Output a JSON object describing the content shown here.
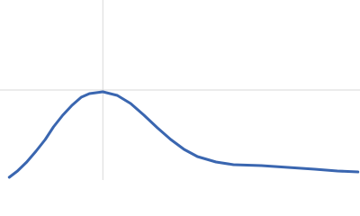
{
  "chart_data": {
    "type": "line",
    "x": [
      0.09,
      0.17,
      0.26,
      0.35,
      0.44,
      0.52,
      0.61,
      0.7,
      0.79,
      0.87,
      1.0,
      1.14,
      1.27,
      1.4,
      1.53,
      1.66,
      1.79,
      1.92,
      2.1,
      2.27,
      2.54,
      2.8,
      3.06,
      3.28,
      3.48
    ],
    "series": [
      {
        "color": "#3a66b0",
        "values": [
          0.03,
          0.1,
          0.2,
          0.32,
          0.45,
          0.59,
          0.72,
          0.83,
          0.92,
          0.96,
          0.98,
          0.94,
          0.85,
          0.72,
          0.58,
          0.45,
          0.34,
          0.26,
          0.2,
          0.17,
          0.16,
          0.14,
          0.12,
          0.1,
          0.09
        ]
      }
    ],
    "xlim": [
      0,
      3.5
    ],
    "ylim": [
      0,
      2
    ],
    "xticks": [
      1
    ],
    "yticks": [
      1
    ],
    "grid": true,
    "grid_color": "#d9d9d9"
  }
}
